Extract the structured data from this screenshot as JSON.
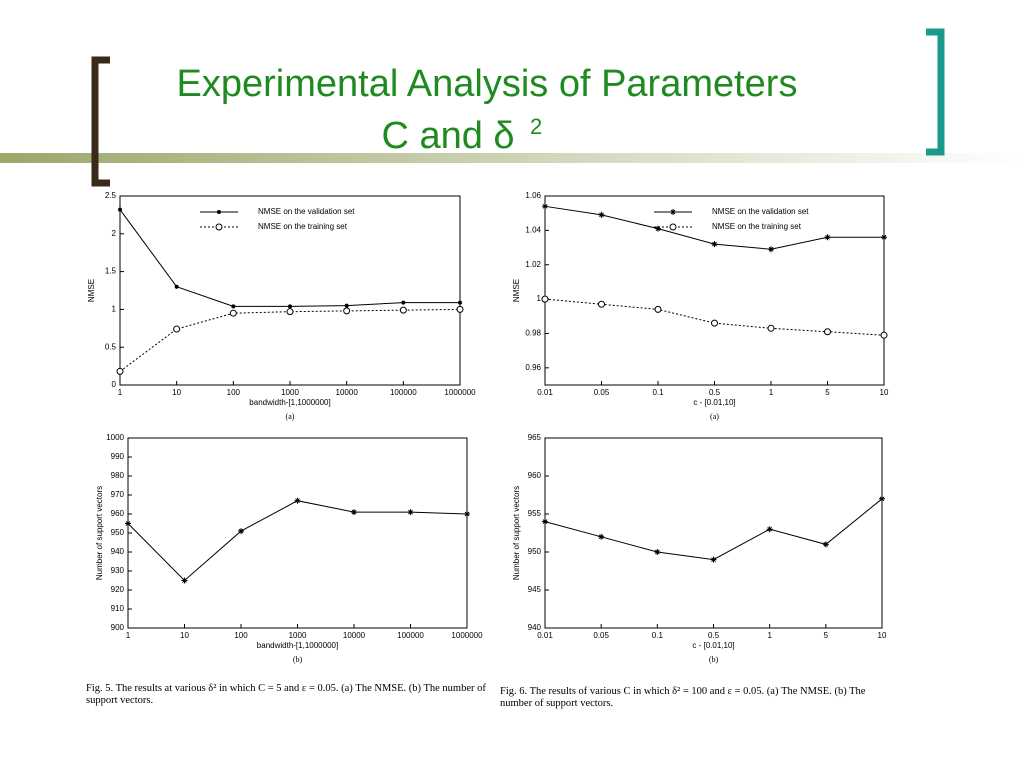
{
  "slide": {
    "title_line1": "Experimental Analysis of Parameters",
    "title_line2": "C and δ",
    "title_sup": "2"
  },
  "captions": [
    "Fig. 5.   The results at various δ² in which C = 5 and ε = 0.05. (a) The NMSE. (b) The number of support vectors.",
    "Fig. 6.   The results of various C in which δ² = 100 and ε = 0.05. (a) The NMSE. (b) The number of support vectors."
  ],
  "chart_data": [
    {
      "type": "line",
      "sublabel": "(a)",
      "x_label": "bandwidth-[1,1000000]",
      "y_label": "NMSE",
      "categories": [
        "1",
        "10",
        "100",
        "1000",
        "10000",
        "100000",
        "1000000"
      ],
      "ylim": [
        0,
        2.5
      ],
      "yticks": [
        0,
        0.5,
        1,
        1.5,
        2,
        2.5
      ],
      "legend": "upper center",
      "series": [
        {
          "name": "NMSE on the validation set",
          "color": "#000000",
          "marker": "dot",
          "line_style": "solid",
          "values": [
            2.32,
            1.3,
            1.04,
            1.04,
            1.05,
            1.09,
            1.09
          ]
        },
        {
          "name": "NMSE on the training set",
          "color": "#000000",
          "marker": "circle",
          "line_style": "dotted",
          "values": [
            0.18,
            0.74,
            0.95,
            0.97,
            0.98,
            0.99,
            1.0
          ]
        }
      ]
    },
    {
      "type": "line",
      "sublabel": "(a)",
      "x_label": "c - [0.01,10]",
      "y_label": "NMSE",
      "categories": [
        "0.01",
        "0.05",
        "0.1",
        "0.5",
        "1",
        "5",
        "10"
      ],
      "ylim": [
        0.95,
        1.06
      ],
      "yticks": [
        0.96,
        0.98,
        1,
        1.02,
        1.04,
        1.06
      ],
      "legend": "upper right",
      "series": [
        {
          "name": "NMSE on the validation set",
          "color": "#000000",
          "marker": "star",
          "line_style": "solid",
          "values": [
            1.054,
            1.049,
            1.041,
            1.032,
            1.029,
            1.036,
            1.036
          ]
        },
        {
          "name": "NMSE on the training set",
          "color": "#000000",
          "marker": "circle",
          "line_style": "dotted",
          "values": [
            1.0,
            0.997,
            0.994,
            0.986,
            0.983,
            0.981,
            0.979
          ]
        }
      ]
    },
    {
      "type": "line",
      "sublabel": "(b)",
      "x_label": "bandwidth-[1,1000000]",
      "y_label": "Number of support vectors",
      "categories": [
        "1",
        "10",
        "100",
        "1000",
        "10000",
        "100000",
        "1000000"
      ],
      "ylim": [
        900,
        1000
      ],
      "yticks": [
        900,
        910,
        920,
        930,
        940,
        950,
        960,
        970,
        980,
        990,
        1000
      ],
      "color": "#000000",
      "marker": "star",
      "values": [
        955,
        925,
        951,
        967,
        961,
        961,
        960
      ]
    },
    {
      "type": "line",
      "sublabel": "(b)",
      "x_label": "c - [0.01,10]",
      "y_label": "Number of support vectors",
      "categories": [
        "0.01",
        "0.05",
        "0.1",
        "0.5",
        "1",
        "5",
        "10"
      ],
      "ylim": [
        940,
        965
      ],
      "yticks": [
        940,
        945,
        950,
        955,
        960,
        965
      ],
      "color": "#000000",
      "marker": "star",
      "values": [
        954,
        952,
        950,
        949,
        953,
        951,
        957
      ]
    }
  ]
}
